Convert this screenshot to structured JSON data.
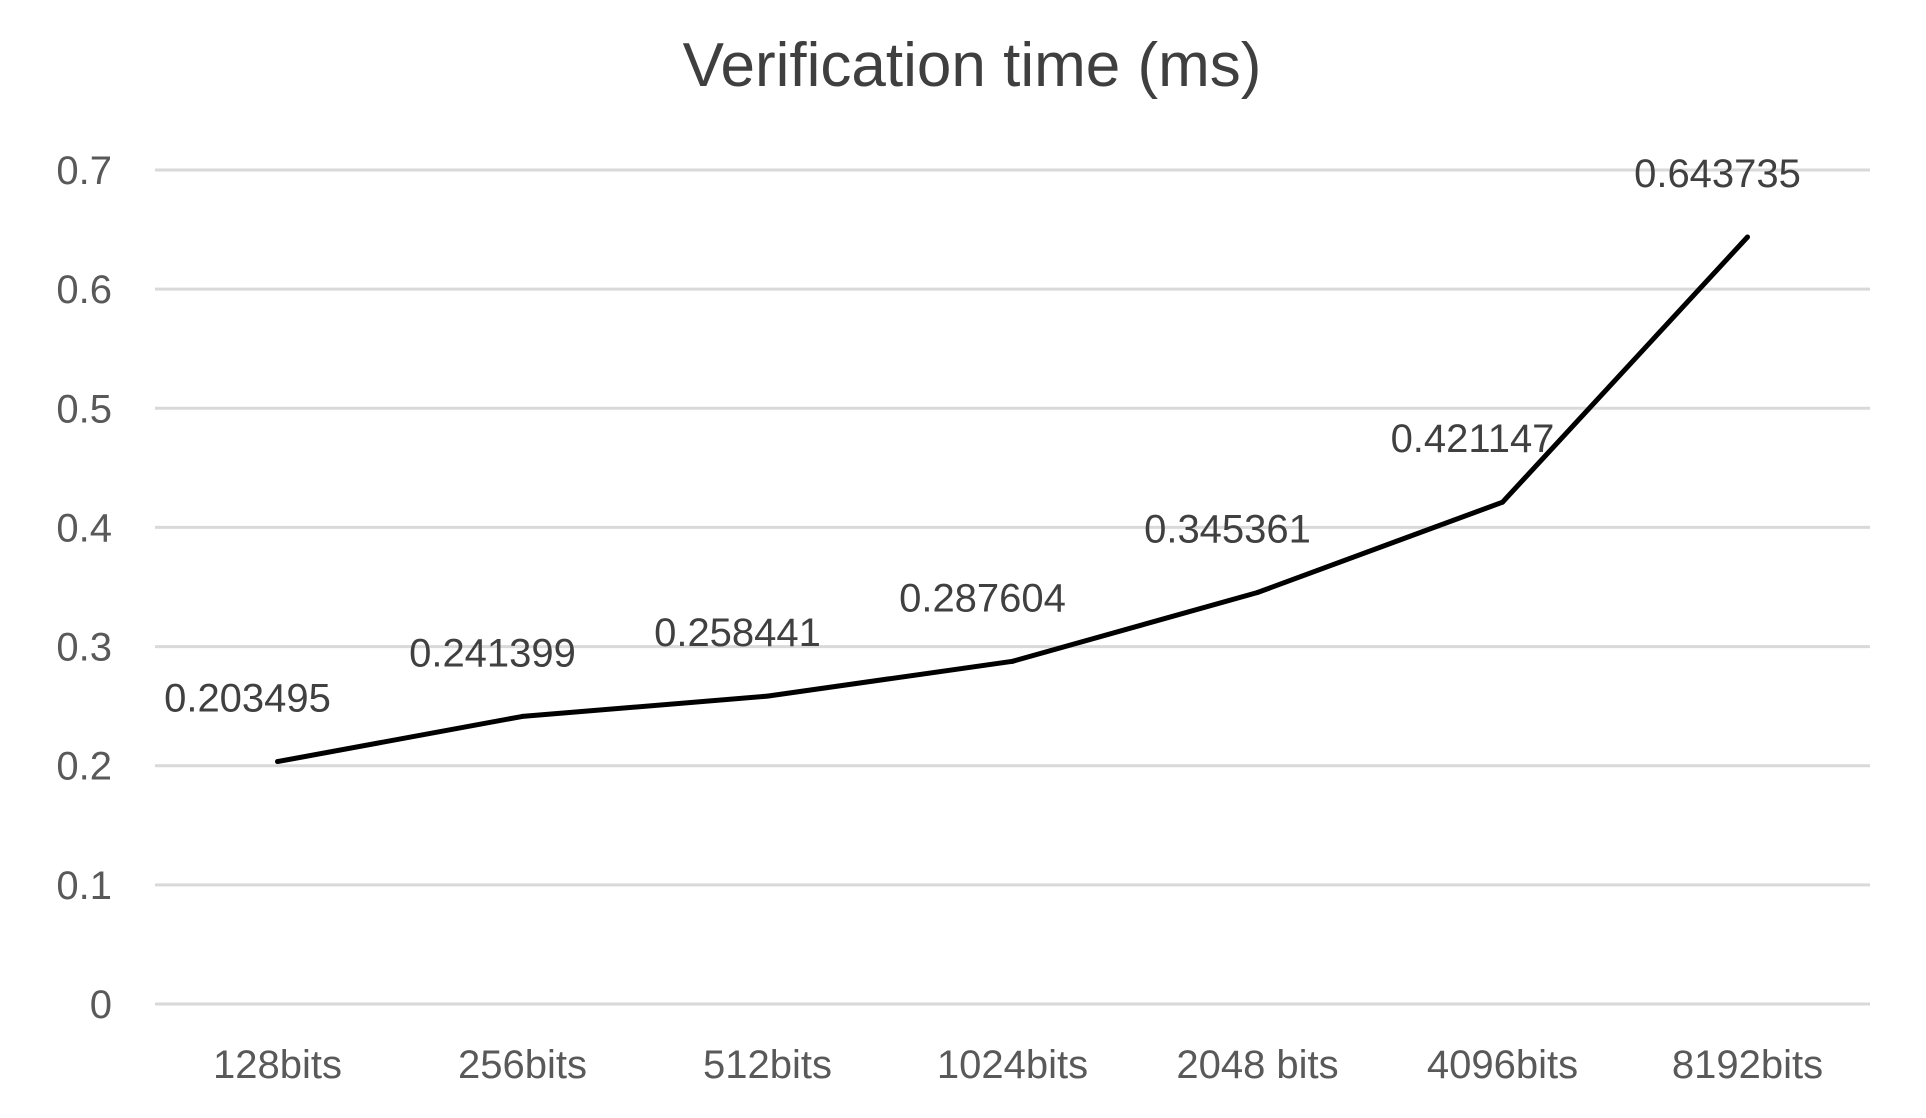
{
  "chart_data": {
    "type": "line",
    "title": "Verification time (ms)",
    "xlabel": "",
    "ylabel": "",
    "categories": [
      "128bits",
      "256bits",
      "512bits",
      "1024bits",
      "2048 bits",
      "4096bits",
      "8192bits"
    ],
    "series": [
      {
        "values": [
          0.203495,
          0.241399,
          0.258441,
          0.287604,
          0.345361,
          0.421147,
          0.643735
        ],
        "data_labels": [
          "0.203495",
          "0.241399",
          "0.258441",
          "0.287604",
          "0.345361",
          "0.421147",
          "0.643735"
        ],
        "color": "#000000"
      }
    ],
    "ylim": [
      0,
      0.7
    ],
    "yticks": [
      "0",
      "0.1",
      "0.2",
      "0.3",
      "0.4",
      "0.5",
      "0.6",
      "0.7"
    ],
    "grid": true,
    "legend": "none"
  }
}
